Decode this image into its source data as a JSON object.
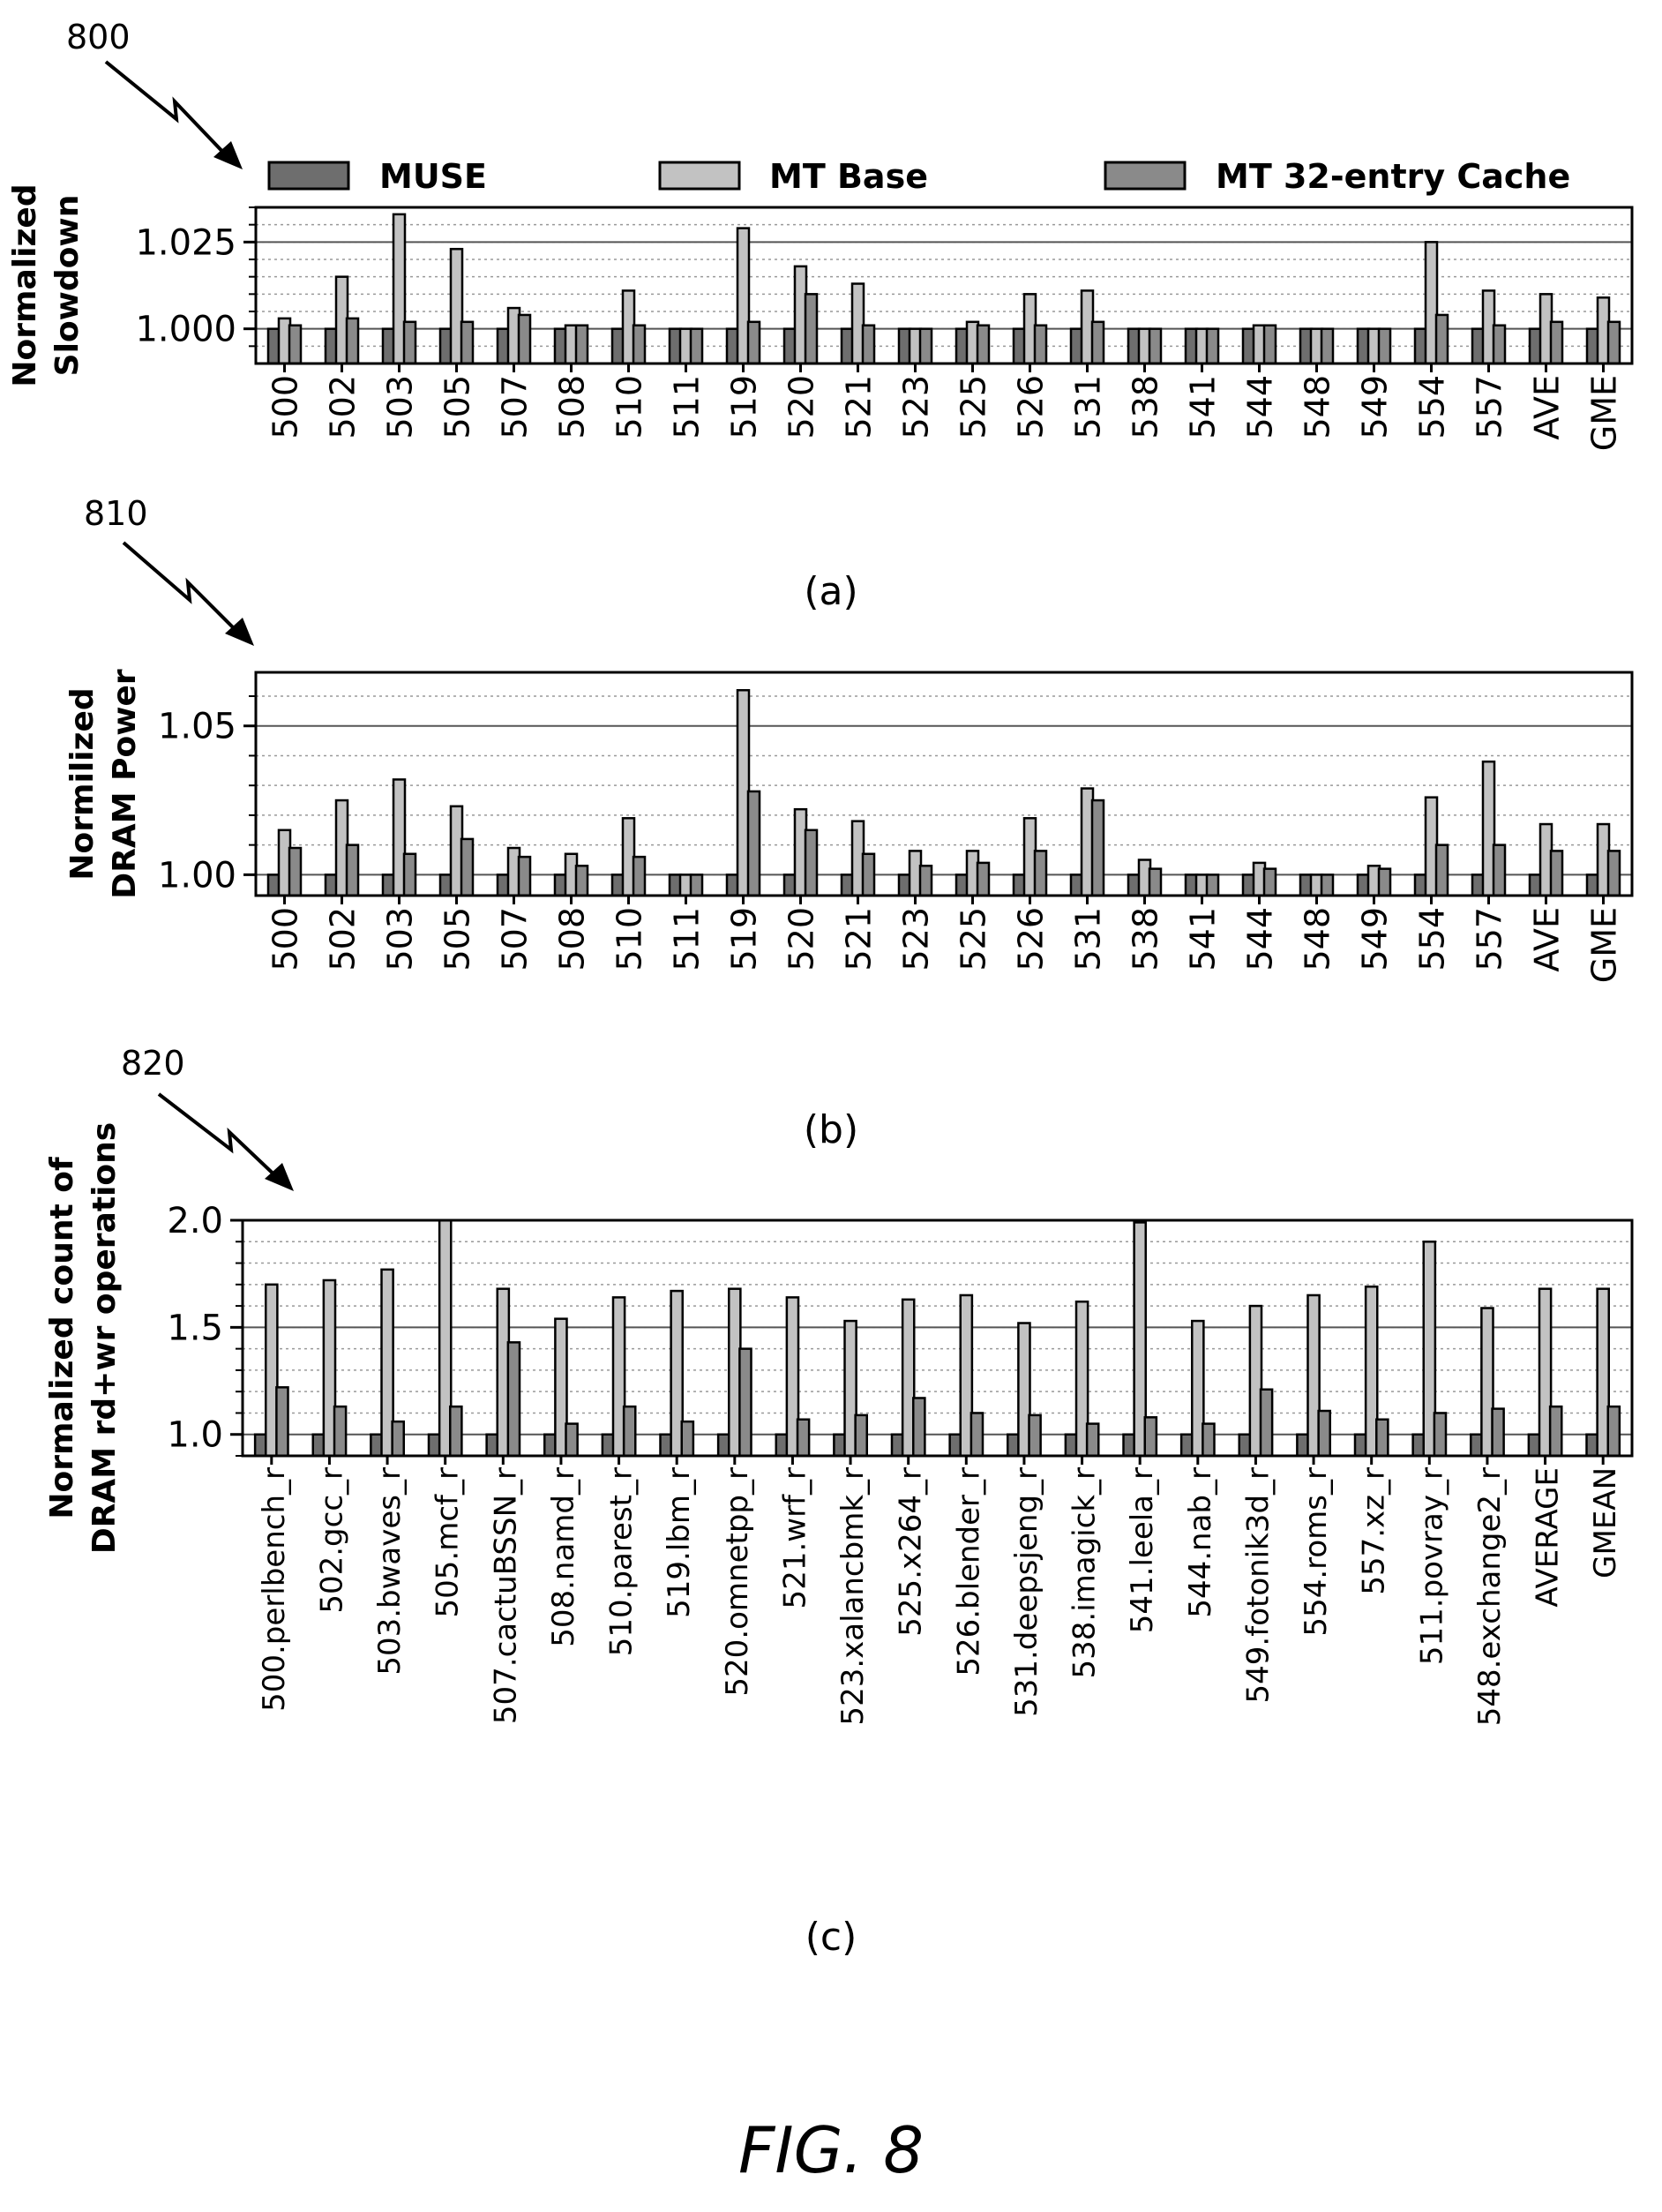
{
  "figure_label": "FIG. 8",
  "legend": [
    {
      "label": "MUSE",
      "color": "#6e6e6e"
    },
    {
      "label": "MT Base",
      "color": "#c2c2c2"
    },
    {
      "label": "MT 32-entry Cache",
      "color": "#8a8a8a"
    }
  ],
  "chart_data": [
    {
      "type": "bar",
      "ref_number": "800",
      "panel_label": "(a)",
      "ylabel": [
        "Normalized",
        "Slowdown"
      ],
      "ylim": [
        0.99,
        1.035
      ],
      "yticks": [
        1.0,
        1.025
      ],
      "ytick_labels": [
        "1.000",
        "1.025"
      ],
      "grid": true,
      "legend_placement": "top",
      "categories": [
        "500",
        "502",
        "503",
        "505",
        "507",
        "508",
        "510",
        "511",
        "519",
        "520",
        "521",
        "523",
        "525",
        "526",
        "531",
        "538",
        "541",
        "544",
        "548",
        "549",
        "554",
        "557",
        "AVE",
        "GME"
      ],
      "series": [
        {
          "name": "MUSE",
          "values": [
            1.0,
            1.0,
            1.0,
            1.0,
            1.0,
            1.0,
            1.0,
            1.0,
            1.0,
            1.0,
            1.0,
            1.0,
            1.0,
            1.0,
            1.0,
            1.0,
            1.0,
            1.0,
            1.0,
            1.0,
            1.0,
            1.0,
            1.0,
            1.0
          ]
        },
        {
          "name": "MT Base",
          "values": [
            1.003,
            1.015,
            1.033,
            1.023,
            1.006,
            1.001,
            1.011,
            1.0,
            1.029,
            1.018,
            1.013,
            1.0,
            1.002,
            1.01,
            1.011,
            1.0,
            1.0,
            1.001,
            1.0,
            1.0,
            1.025,
            1.011,
            1.01,
            1.009
          ]
        },
        {
          "name": "MT 32-entry Cache",
          "values": [
            1.001,
            1.003,
            1.002,
            1.002,
            1.004,
            1.001,
            1.001,
            1.0,
            1.002,
            1.01,
            1.001,
            1.0,
            1.001,
            1.001,
            1.002,
            1.0,
            1.0,
            1.001,
            1.0,
            1.0,
            1.004,
            1.001,
            1.002,
            1.002
          ]
        }
      ]
    },
    {
      "type": "bar",
      "ref_number": "810",
      "panel_label": "(b)",
      "ylabel": [
        "Normilized",
        "DRAM Power"
      ],
      "ylim": [
        0.993,
        1.068
      ],
      "yticks": [
        1.0,
        1.05
      ],
      "ytick_labels": [
        "1.00",
        "1.05"
      ],
      "grid": true,
      "categories": [
        "500",
        "502",
        "503",
        "505",
        "507",
        "508",
        "510",
        "511",
        "519",
        "520",
        "521",
        "523",
        "525",
        "526",
        "531",
        "538",
        "541",
        "544",
        "548",
        "549",
        "554",
        "557",
        "AVE",
        "GME"
      ],
      "series": [
        {
          "name": "MUSE",
          "values": [
            1.0,
            1.0,
            1.0,
            1.0,
            1.0,
            1.0,
            1.0,
            1.0,
            1.0,
            1.0,
            1.0,
            1.0,
            1.0,
            1.0,
            1.0,
            1.0,
            1.0,
            1.0,
            1.0,
            1.0,
            1.0,
            1.0,
            1.0,
            1.0
          ]
        },
        {
          "name": "MT Base",
          "values": [
            1.015,
            1.025,
            1.032,
            1.023,
            1.009,
            1.007,
            1.019,
            1.0,
            1.062,
            1.022,
            1.018,
            1.008,
            1.008,
            1.019,
            1.029,
            1.005,
            1.0,
            1.004,
            1.0,
            1.003,
            1.026,
            1.038,
            1.017,
            1.017
          ]
        },
        {
          "name": "MT 32-entry Cache",
          "values": [
            1.009,
            1.01,
            1.007,
            1.012,
            1.006,
            1.003,
            1.006,
            1.0,
            1.028,
            1.015,
            1.007,
            1.003,
            1.004,
            1.008,
            1.025,
            1.002,
            1.0,
            1.002,
            1.0,
            1.002,
            1.01,
            1.01,
            1.008,
            1.008
          ]
        }
      ]
    },
    {
      "type": "bar",
      "ref_number": "820",
      "panel_label": "(c)",
      "ylabel": [
        "Normalized count of",
        "DRAM rd+wr operations"
      ],
      "ylim": [
        0.9,
        2.0
      ],
      "yticks": [
        1.0,
        1.5,
        2.0
      ],
      "ytick_labels": [
        "1.0",
        "1.5",
        "2.0"
      ],
      "grid": true,
      "categories": [
        "500.perlbench_r",
        "502.gcc_r",
        "503.bwaves_r",
        "505.mcf_r",
        "507.cactuBSSN_r",
        "508.namd_r",
        "510.parest_r",
        "519.lbm_r",
        "520.omnetpp_r",
        "521.wrf_r",
        "523.xalancbmk_r",
        "525.x264_r",
        "526.blender_r",
        "531.deepsjeng_r",
        "538.imagick_r",
        "541.leela_r",
        "544.nab_r",
        "549.fotonik3d_r",
        "554.roms_r",
        "557.xz_r",
        "511.povray_r",
        "548.exchange2_r",
        "AVERAGE",
        "GMEAN"
      ],
      "series": [
        {
          "name": "MUSE",
          "values": [
            1.0,
            1.0,
            1.0,
            1.0,
            1.0,
            1.0,
            1.0,
            1.0,
            1.0,
            1.0,
            1.0,
            1.0,
            1.0,
            1.0,
            1.0,
            1.0,
            1.0,
            1.0,
            1.0,
            1.0,
            1.0,
            1.0,
            1.0,
            1.0
          ]
        },
        {
          "name": "MT Base",
          "values": [
            1.7,
            1.72,
            1.77,
            2.0,
            1.68,
            1.54,
            1.64,
            1.67,
            1.68,
            1.64,
            1.53,
            1.63,
            1.65,
            1.52,
            1.62,
            1.99,
            1.53,
            1.6,
            1.65,
            1.69,
            1.9,
            1.59,
            1.68,
            1.68
          ]
        },
        {
          "name": "MT 32-entry Cache",
          "values": [
            1.22,
            1.13,
            1.06,
            1.13,
            1.43,
            1.05,
            1.13,
            1.06,
            1.4,
            1.07,
            1.09,
            1.17,
            1.1,
            1.09,
            1.05,
            1.08,
            1.05,
            1.21,
            1.11,
            1.07,
            1.1,
            1.12,
            1.13,
            1.13
          ]
        }
      ]
    }
  ]
}
